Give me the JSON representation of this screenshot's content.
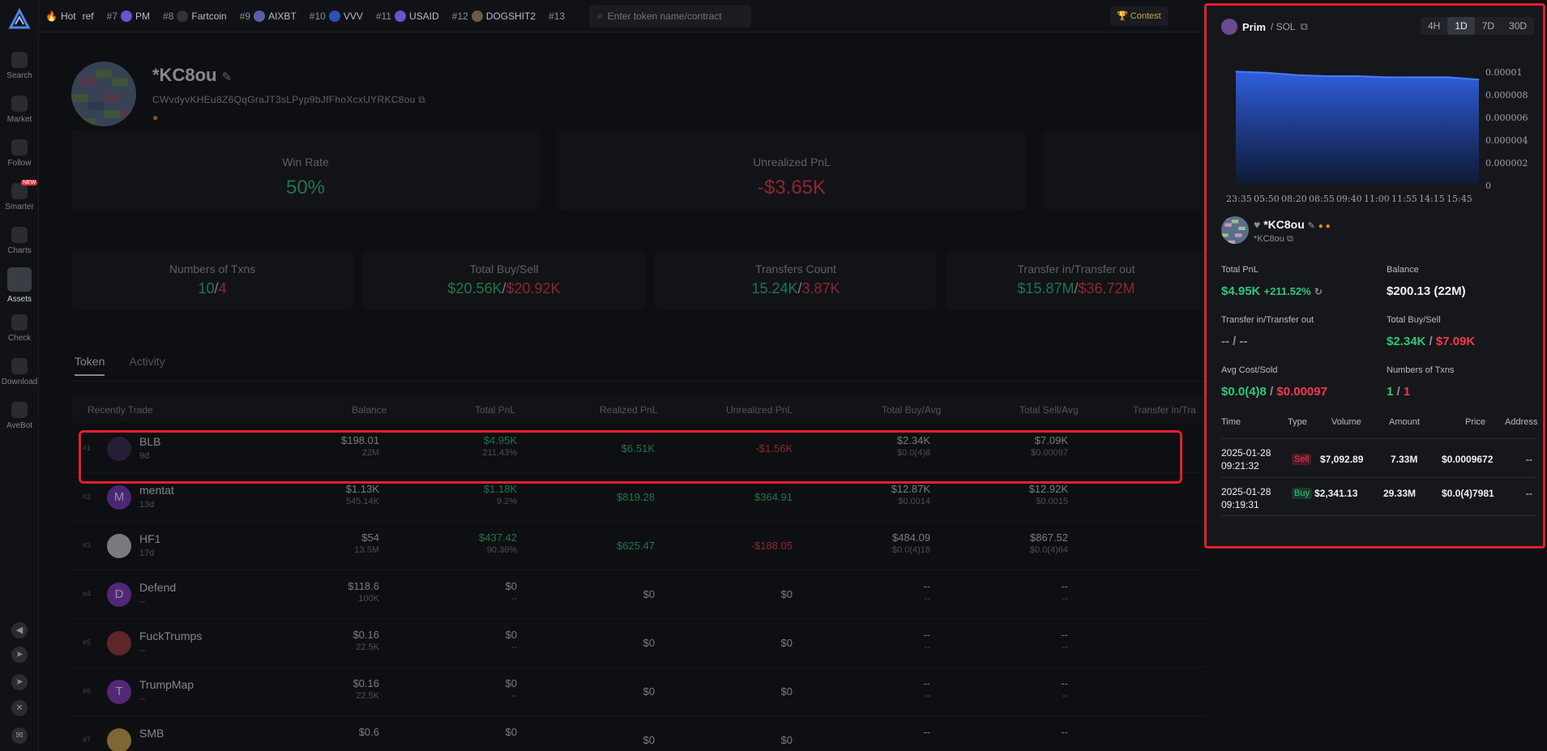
{
  "rail": {
    "items": [
      {
        "label": "Search"
      },
      {
        "label": "Market"
      },
      {
        "label": "Follow"
      },
      {
        "label": "Smarter",
        "badge": "NEW"
      },
      {
        "label": "Charts"
      },
      {
        "label": "Assets"
      },
      {
        "label": "Check"
      },
      {
        "label": "Download"
      },
      {
        "label": "AveBot"
      }
    ]
  },
  "topbar": {
    "hot_label": "Hot",
    "ticker": [
      {
        "rank": "",
        "name": "ref"
      },
      {
        "rank": "#7",
        "name": "PM"
      },
      {
        "rank": "#8",
        "name": "Fartcoin"
      },
      {
        "rank": "#9",
        "name": "AIXBT"
      },
      {
        "rank": "#10",
        "name": "VVV"
      },
      {
        "rank": "#11",
        "name": "USAID"
      },
      {
        "rank": "#12",
        "name": "DOGSHIT2"
      },
      {
        "rank": "#13",
        "name": ""
      }
    ],
    "search_placeholder": "Enter token name/contract",
    "contest_label": "Contest"
  },
  "wallet": {
    "name": "*KC8ou",
    "address": "CWvdyvKHEu8Z6QqGraJT3sLPyp9bJfFhoXcxUYRKC8ou"
  },
  "stats_top": [
    {
      "label": "Win Rate",
      "value": "50%"
    },
    {
      "label": "Unrealized PnL",
      "value": "-$3.65K"
    }
  ],
  "stats_second": [
    {
      "label": "Numbers of Txns",
      "v1": "10",
      "v2": "4"
    },
    {
      "label": "Total Buy/Sell",
      "v1": "$20.56K",
      "v2": "$20.92K"
    },
    {
      "label": "Transfers Count",
      "v1": "15.24K",
      "v2": "3.87K"
    },
    {
      "label": "Transfer in/Transfer out",
      "v1": "$15.87M",
      "v2": "$36.72M"
    }
  ],
  "tabs": [
    "Token",
    "Activity"
  ],
  "table": {
    "headers": [
      "Recently Trade",
      "Balance",
      "Total PnL",
      "Realized PnL",
      "Unrealized PnL",
      "Total Buy/Avg",
      "Total Sell/Avg",
      "Transfer in/Tra"
    ],
    "rows": [
      {
        "rank": "#1",
        "name": "BLB",
        "age": "9d",
        "initial": "",
        "bal": "$198.01",
        "bal2": "22M",
        "pnl": "$4.95K",
        "pnl2": "211.43%",
        "realized": "$6.51K",
        "unrealized": "-$1.56K",
        "buy": "$2.34K",
        "buy2": "$0.0(4)8",
        "sell": "$7.09K",
        "sell2": "$0.00097"
      },
      {
        "rank": "#2",
        "name": "mentat",
        "age": "13d",
        "initial": "M",
        "bal": "$1.13K",
        "bal2": "545.14K",
        "pnl": "$1.18K",
        "pnl2": "9.2%",
        "realized": "$819.28",
        "unrealized": "$364.91",
        "buy": "$12.87K",
        "buy2": "$0.0014",
        "sell": "$12.92K",
        "sell2": "$0.0015"
      },
      {
        "rank": "#3",
        "name": "HF1",
        "age": "17d",
        "initial": "",
        "bal": "$54",
        "bal2": "13.5M",
        "pnl": "$437.42",
        "pnl2": "90.36%",
        "realized": "$625.47",
        "unrealized": "-$188.05",
        "buy": "$484.09",
        "buy2": "$0.0(4)18",
        "sell": "$867.52",
        "sell2": "$0.0(4)64"
      },
      {
        "rank": "#4",
        "name": "Defend",
        "age": "--",
        "initial": "D",
        "bal": "$118.6",
        "bal2": "100K",
        "pnl": "$0",
        "pnl2": "--",
        "realized": "$0",
        "unrealized": "$0",
        "buy": "--",
        "buy2": "--",
        "sell": "--",
        "sell2": "--"
      },
      {
        "rank": "#5",
        "name": "FuckTrumps",
        "age": "--",
        "initial": "",
        "bal": "$0.16",
        "bal2": "22.5K",
        "pnl": "$0",
        "pnl2": "--",
        "realized": "$0",
        "unrealized": "$0",
        "buy": "--",
        "buy2": "--",
        "sell": "--",
        "sell2": "--"
      },
      {
        "rank": "#6",
        "name": "TrumpMap",
        "age": "--",
        "initial": "T",
        "bal": "$0.16",
        "bal2": "22.5K",
        "pnl": "$0",
        "pnl2": "--",
        "realized": "$0",
        "unrealized": "$0",
        "buy": "--",
        "buy2": "--",
        "sell": "--",
        "sell2": "--"
      },
      {
        "rank": "#7",
        "name": "SMB",
        "age": "",
        "initial": "",
        "bal": "$0.6",
        "bal2": "",
        "pnl": "$0",
        "pnl2": "",
        "realized": "$0",
        "unrealized": "$0",
        "buy": "--",
        "buy2": "",
        "sell": "--",
        "sell2": ""
      }
    ]
  },
  "panel": {
    "symbol": "Prim",
    "chain": "/ SOL",
    "timeframes": [
      "4H",
      "1D",
      "7D",
      "30D"
    ],
    "active_tf": "1D",
    "wallet_name": "*KC8ou",
    "wallet_sub": "*KC8ou",
    "stats": {
      "total_pnl_label": "Total PnL",
      "total_pnl": "$4.95K",
      "total_pnl_pct": "+211.52%",
      "balance_label": "Balance",
      "balance": "$200.13 (22M)",
      "transfer_label": "Transfer in/Transfer out",
      "transfer": "-- / --",
      "buysell_label": "Total Buy/Sell",
      "buy": "$2.34K",
      "sell": "$7.09K",
      "avg_label": "Avg Cost/Sold",
      "avg_cost": "$0.0(4)8",
      "avg_sold": "$0.00097",
      "txns_label": "Numbers of Txns",
      "txns_buy": "1",
      "txns_sell": "1"
    },
    "trade_headers": [
      "Time",
      "Type",
      "Volume",
      "Amount",
      "Price",
      "Address"
    ],
    "trades": [
      {
        "date": "2025-01-28",
        "time": "09:21:32",
        "type": "Sell",
        "volume": "$7,092.89",
        "amount": "7.33M",
        "price": "$0.0009672",
        "address": "--"
      },
      {
        "date": "2025-01-28",
        "time": "09:19:31",
        "type": "Buy",
        "volume": "$2,341.13",
        "amount": "29.33M",
        "price": "$0.0(4)7981",
        "address": "--"
      }
    ]
  },
  "chart_data": {
    "type": "area",
    "x": [
      "23:35",
      "05:50",
      "08:20",
      "08:55",
      "09:40",
      "11:00",
      "11:55",
      "14:15",
      "15:45"
    ],
    "y": [
      9.9e-06,
      9.8e-06,
      9.6e-06,
      9.5e-06,
      9.5e-06,
      9.4e-06,
      9.4e-06,
      9.4e-06,
      9.2e-06
    ],
    "ytick_labels": [
      "0.00001",
      "0.000008",
      "0.000006",
      "0.000004",
      "0.000002",
      "0"
    ],
    "ylim": [
      0,
      1e-05
    ],
    "color": "#2f5fe0"
  }
}
